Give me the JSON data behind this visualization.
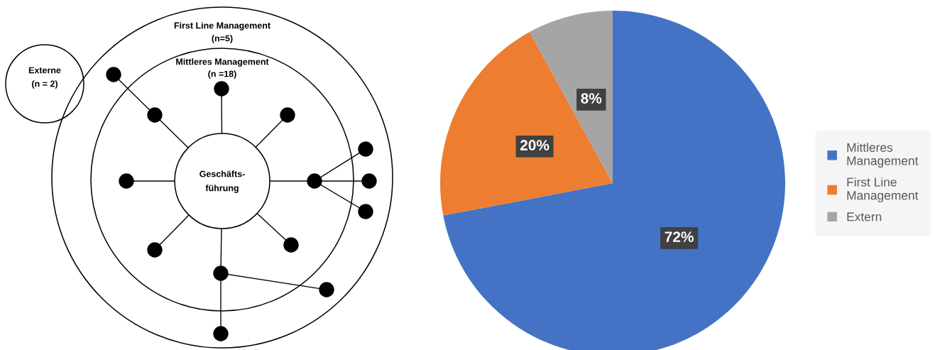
{
  "chart_data": [
    {
      "type": "other",
      "annotations": [
        "First Line Management",
        "(n=5)",
        "Mittleres Management",
        "(n =18)",
        "Geschäfts-",
        "führung",
        "Externe",
        "(n = 2)"
      ]
    },
    {
      "type": "pie",
      "categories": [
        "Mittleres Management",
        "First Line Management",
        "Extern"
      ],
      "values": [
        72,
        20,
        8
      ],
      "colors": [
        "#4472c4",
        "#ed7d31",
        "#a5a5a5"
      ],
      "value_labels": [
        "72%",
        "20%",
        "8%"
      ],
      "legend": "right"
    }
  ]
}
